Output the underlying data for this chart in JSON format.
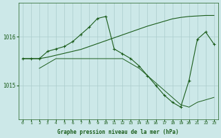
{
  "background_color": "#cce8e8",
  "grid_color": "#aacccc",
  "line_color": "#1a5c1a",
  "xlabel": "Graphe pression niveau de la mer (hPa)",
  "xlim": [
    -0.5,
    23.5
  ],
  "ylim": [
    1014.3,
    1016.7
  ],
  "yticks": [
    1015,
    1016
  ],
  "xticks": [
    0,
    1,
    2,
    3,
    4,
    5,
    6,
    7,
    8,
    9,
    10,
    11,
    12,
    13,
    14,
    15,
    16,
    17,
    18,
    19,
    20,
    21,
    22,
    23
  ],
  "series": [
    {
      "x": [
        0,
        1,
        2,
        3,
        4,
        5,
        6,
        7,
        8,
        9,
        10,
        11,
        12,
        13,
        14,
        15,
        16,
        17,
        18,
        19,
        20,
        21,
        22,
        23
      ],
      "y": [
        1015.55,
        1015.55,
        1015.55,
        1015.58,
        1015.62,
        1015.66,
        1015.7,
        1015.74,
        1015.8,
        1015.86,
        1015.92,
        1015.98,
        1016.04,
        1016.1,
        1016.16,
        1016.22,
        1016.27,
        1016.32,
        1016.37,
        1016.4,
        1016.42,
        1016.43,
        1016.44,
        1016.44
      ],
      "style": "solid",
      "has_markers": false,
      "linewidth": 0.8
    },
    {
      "x": [
        0,
        1,
        2,
        3,
        4,
        5,
        6,
        7,
        8,
        9,
        10,
        11,
        12,
        13,
        14,
        15,
        16,
        17,
        18,
        19,
        20,
        21,
        22,
        23
      ],
      "y": [
        1015.55,
        1015.55,
        1015.55,
        1015.7,
        1015.75,
        1015.8,
        1015.9,
        1016.05,
        1016.2,
        1016.38,
        1016.42,
        1015.75,
        1015.65,
        1015.55,
        1015.4,
        1015.2,
        1015.0,
        1014.8,
        1014.65,
        1014.55,
        1015.1,
        1015.95,
        1016.1,
        1015.85
      ],
      "style": "solid",
      "has_markers": true,
      "linewidth": 0.8
    },
    {
      "x": [
        2,
        3,
        4,
        5,
        6,
        7,
        8,
        9,
        10,
        11,
        12,
        13,
        14,
        15,
        16,
        17,
        18,
        19,
        20,
        21,
        22,
        23
      ],
      "y": [
        1015.35,
        1015.45,
        1015.55,
        1015.55,
        1015.55,
        1015.55,
        1015.55,
        1015.55,
        1015.55,
        1015.55,
        1015.55,
        1015.45,
        1015.35,
        1015.2,
        1015.05,
        1014.9,
        1014.75,
        1014.6,
        1014.55,
        1014.65,
        1014.7,
        1014.75
      ],
      "style": "solid",
      "has_markers": false,
      "linewidth": 0.7
    }
  ]
}
